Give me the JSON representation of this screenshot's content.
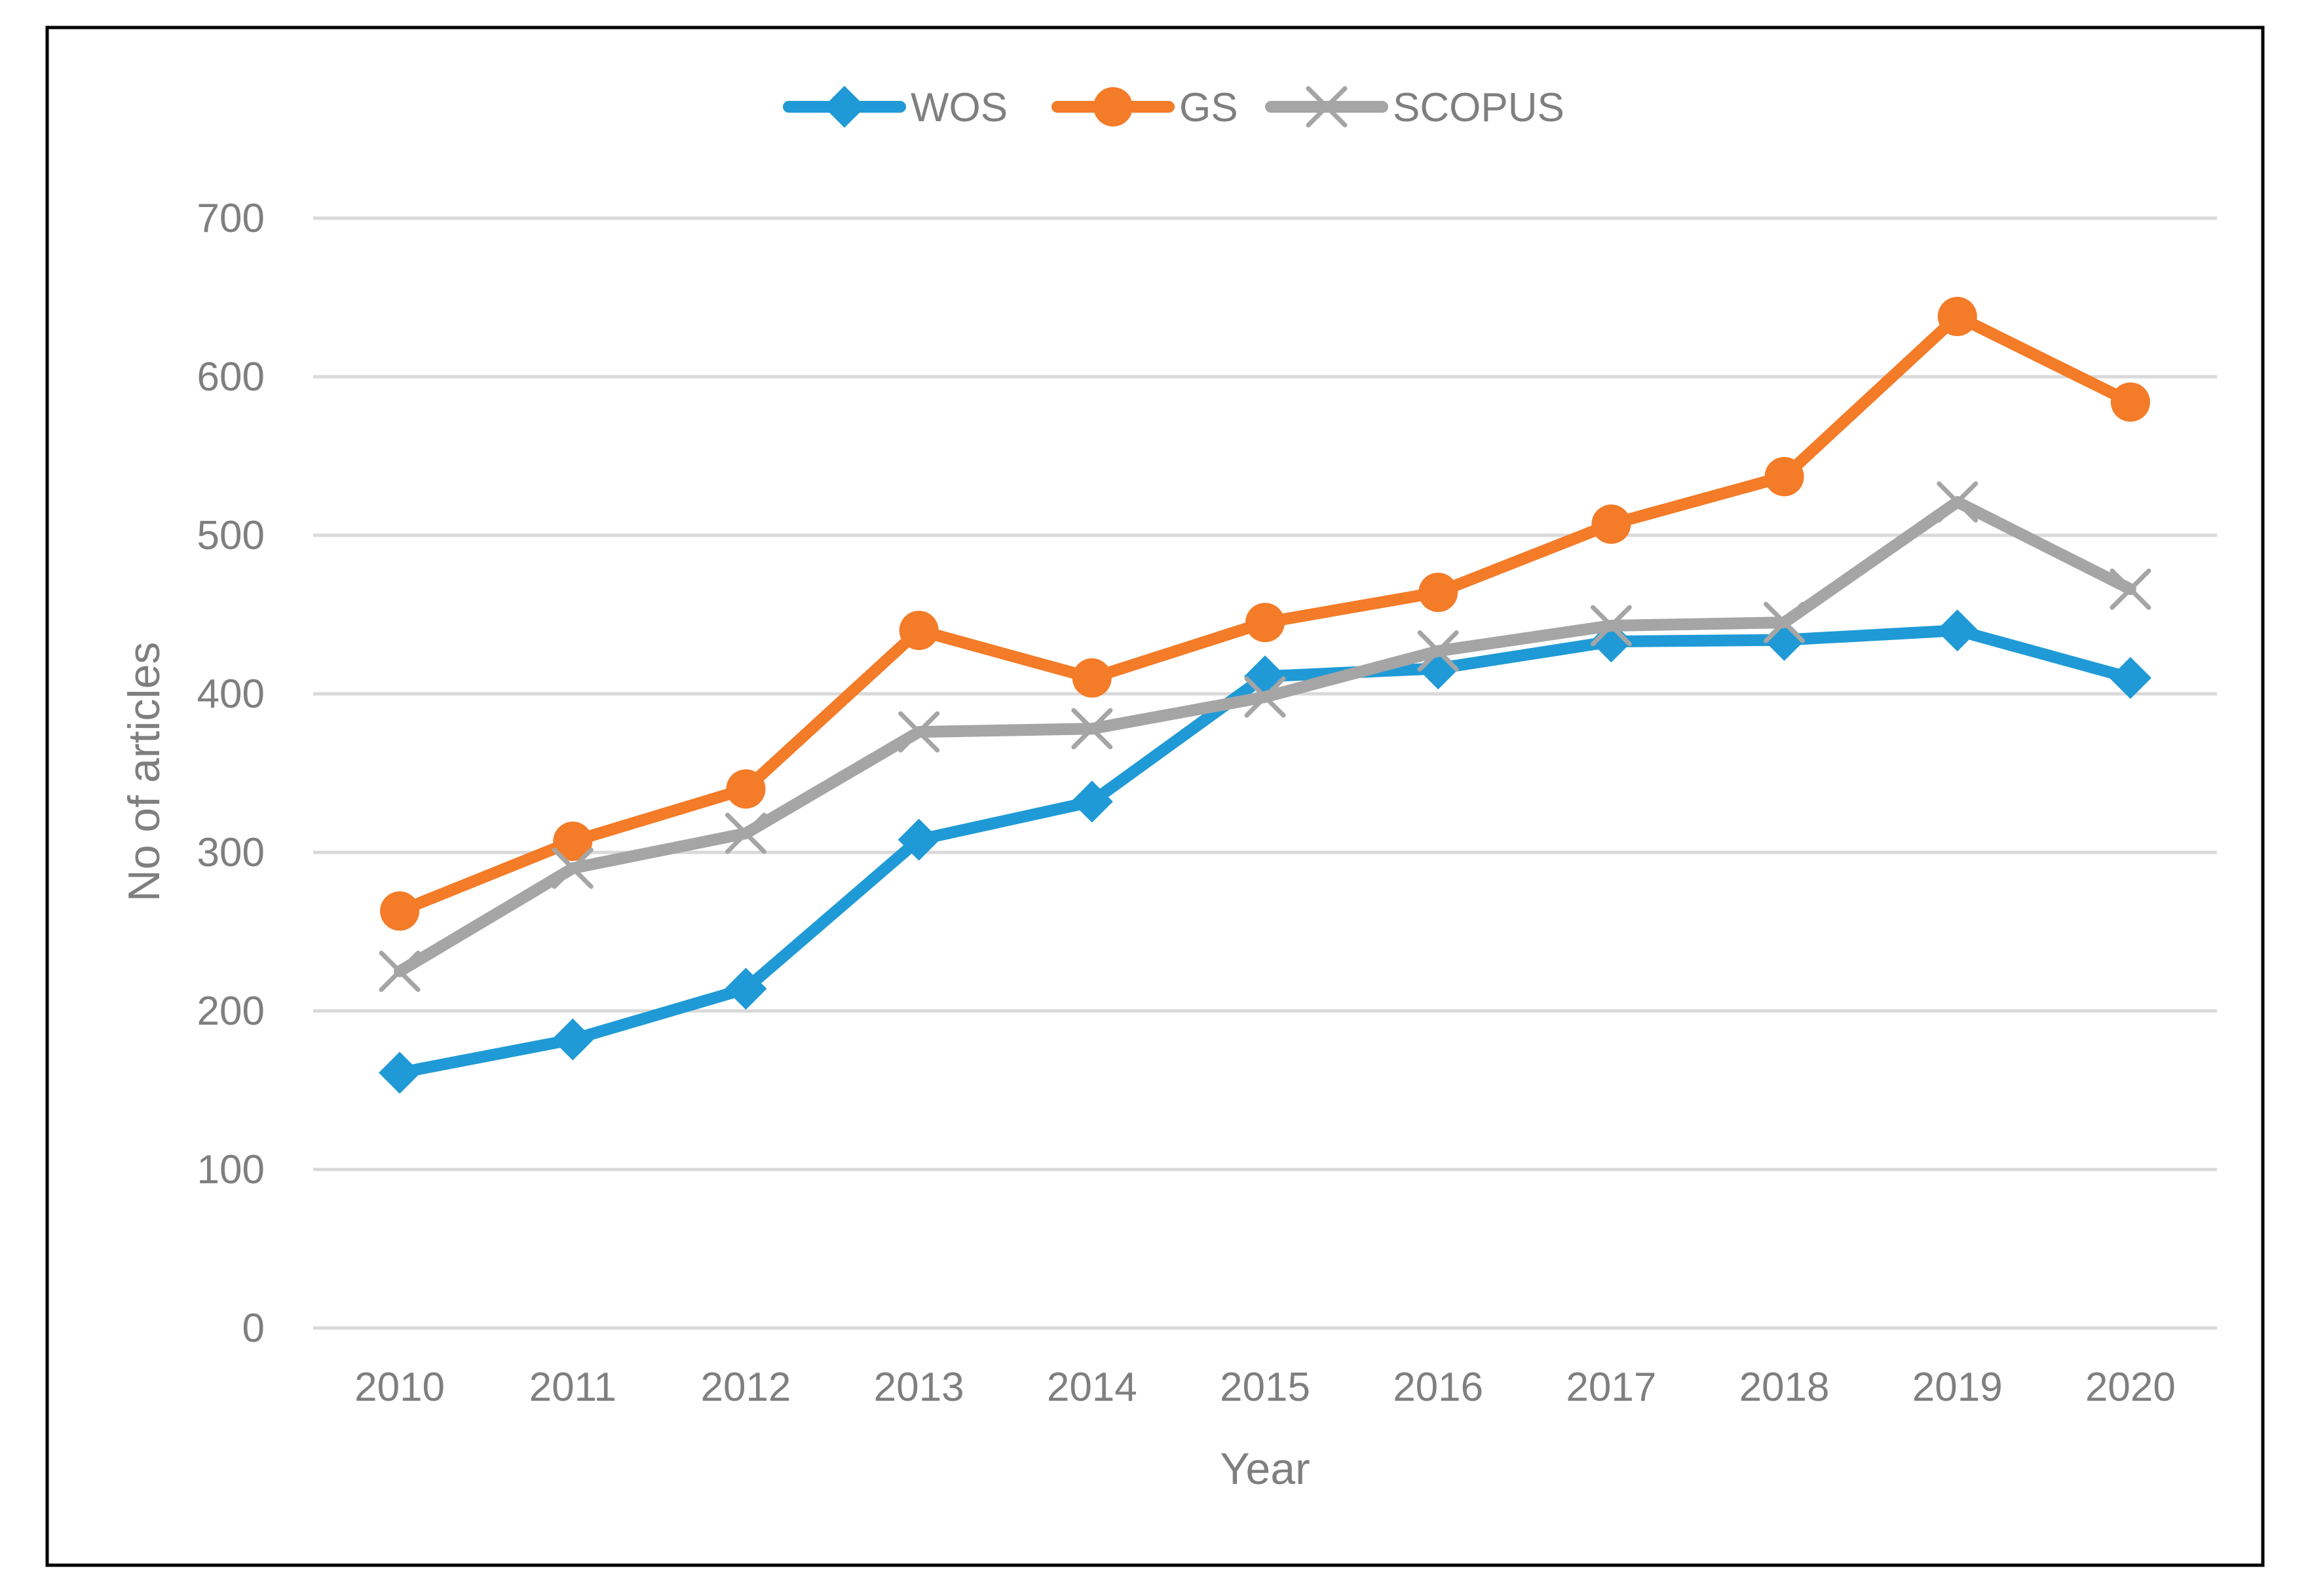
{
  "chart_data": {
    "type": "line",
    "title": "",
    "xlabel": "Year",
    "ylabel": "No of articles",
    "categories": [
      "2010",
      "2011",
      "2012",
      "2013",
      "2014",
      "2015",
      "2016",
      "2017",
      "2018",
      "2019",
      "2020"
    ],
    "ylim": [
      0,
      700
    ],
    "yticks": [
      0,
      100,
      200,
      300,
      400,
      500,
      600,
      700
    ],
    "ytick_labels": [
      "0",
      "100",
      "200",
      "300",
      "400",
      "500",
      "600",
      "700"
    ],
    "grid": true,
    "legend_position": "top-center",
    "series": [
      {
        "name": "WOS",
        "color": "#1f9ad6",
        "marker": "diamond",
        "values": [
          161,
          182,
          214,
          308,
          332,
          411,
          416,
          433,
          434,
          440,
          410
        ]
      },
      {
        "name": "GS",
        "color": "#f47b27",
        "marker": "circle",
        "values": [
          263,
          307,
          340,
          440,
          410,
          445,
          464,
          507,
          537,
          638,
          584
        ]
      },
      {
        "name": "SCOPUS",
        "color": "#a5a5a5",
        "marker": "x",
        "values": [
          225,
          290,
          312,
          376,
          378,
          398,
          427,
          443,
          445,
          521,
          466
        ]
      }
    ]
  }
}
